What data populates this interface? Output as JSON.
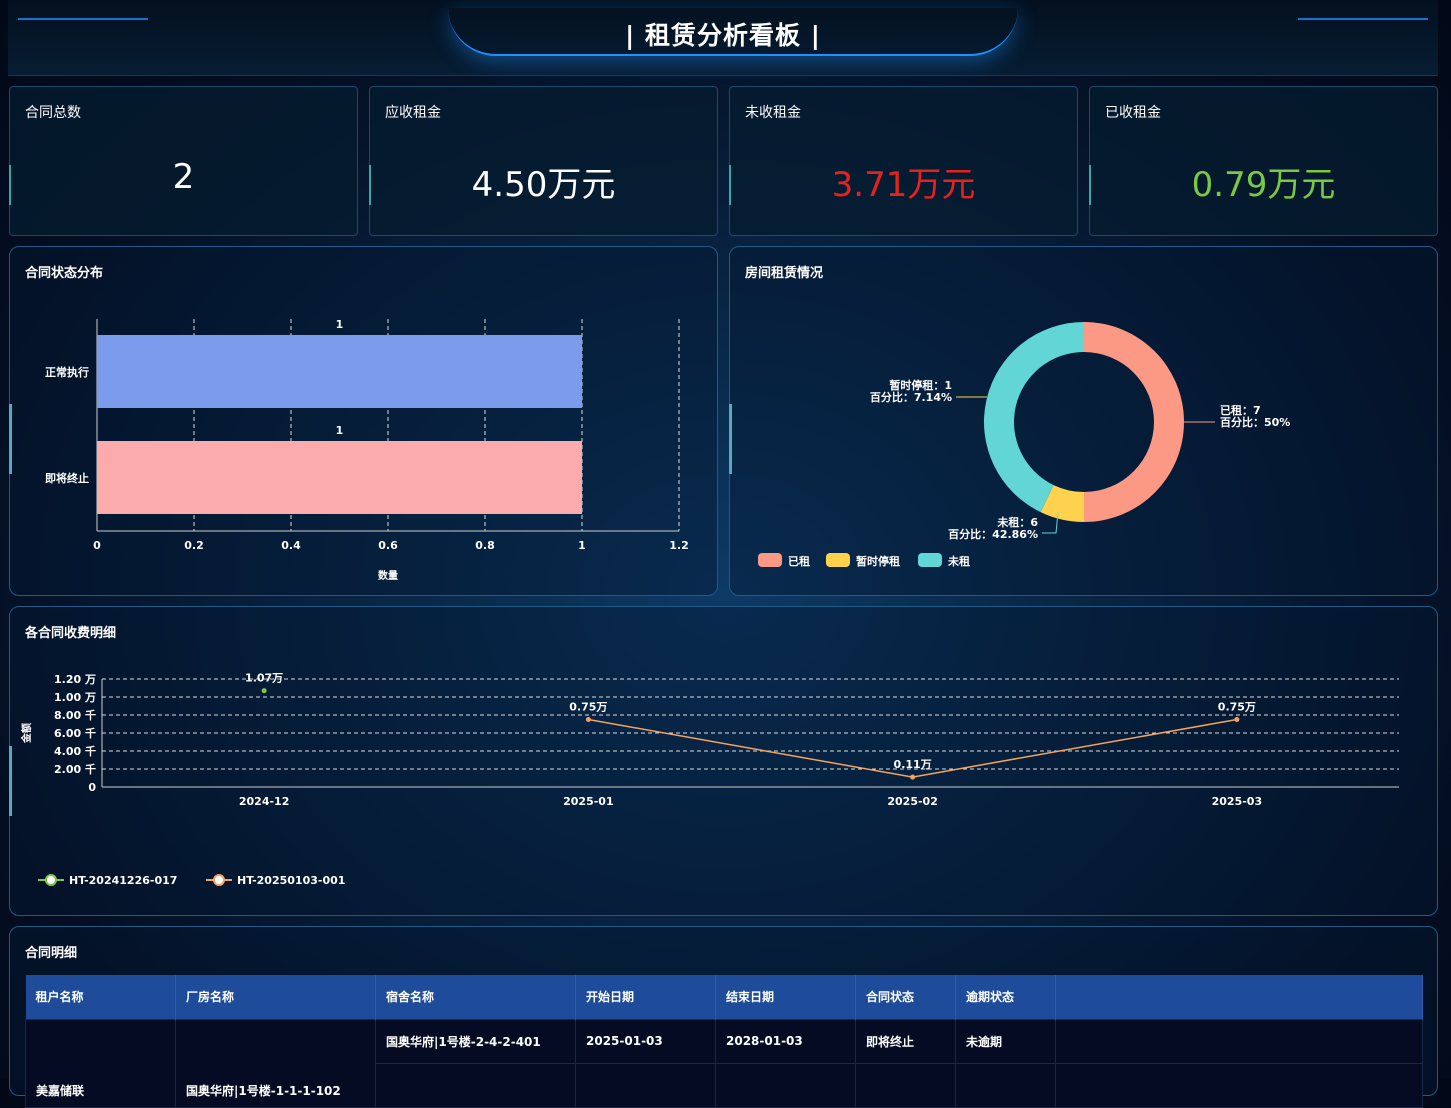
{
  "header": {
    "title": "| 租赁分析看板 |"
  },
  "stats": [
    {
      "label": "合同总数",
      "value": "2",
      "color": "#ffffff"
    },
    {
      "label": "应收租金",
      "value": "4.50万元",
      "color": "#ffffff"
    },
    {
      "label": "未收租金",
      "value": "3.71万元",
      "color": "#e8211f"
    },
    {
      "label": "已收租金",
      "value": "0.79万元",
      "color": "#7ac943"
    }
  ],
  "status_panel": {
    "title": "合同状态分布",
    "chart_data": {
      "type": "bar",
      "orientation": "horizontal",
      "categories": [
        "正常执行",
        "即将终止"
      ],
      "values": [
        1,
        1
      ],
      "colors": [
        "#7b9cec",
        "#fbabab"
      ],
      "xlabel": "数量",
      "xlim": [
        0,
        1.2
      ],
      "xticks": [
        "0",
        "0.2",
        "0.4",
        "0.6",
        "0.8",
        "1",
        "1.2"
      ],
      "data_labels": [
        "1",
        "1"
      ],
      "grid": true
    }
  },
  "room_panel": {
    "title": "房间租赁情况",
    "chart_data": {
      "type": "pie",
      "donut": true,
      "slices": [
        {
          "name": "已租",
          "value": 7,
          "percent": "50%",
          "color": "#fc9985",
          "label1": "已租：7",
          "label2": "百分比：50%"
        },
        {
          "name": "暂时停租",
          "value": 1,
          "percent": "7.14%",
          "color": "#ffd24d",
          "label1": "暂时停租：1",
          "label2": "百分比：7.14%"
        },
        {
          "name": "未租",
          "value": 6,
          "percent": "42.86%",
          "color": "#62d6d6",
          "label1": "未租：6",
          "label2": "百分比：42.86%"
        }
      ],
      "legend": "bottom-left"
    }
  },
  "fee_panel": {
    "title": "各合同收费明细",
    "chart_data": {
      "type": "line",
      "categories": [
        "2024-12",
        "2025-01",
        "2025-02",
        "2025-03"
      ],
      "ylim": [
        0,
        12000
      ],
      "yticks": [
        "0",
        "2.00 千",
        "4.00 千",
        "6.00 千",
        "8.00 千",
        "1.00 万",
        "1.20 万"
      ],
      "ylabel": "金额",
      "grid": true,
      "legend": "bottom-left",
      "series": [
        {
          "name": "HT-20241226-017",
          "color": "#7ac943",
          "values": [
            10700,
            null,
            null,
            null
          ],
          "labels": [
            "1.07万",
            null,
            null,
            null
          ]
        },
        {
          "name": "HT-20250103-001",
          "color": "#f4a460",
          "values": [
            null,
            7500,
            1100,
            7500
          ],
          "labels": [
            null,
            "0.75万",
            "0.11万",
            "0.75万"
          ]
        }
      ]
    }
  },
  "table_panel": {
    "title": "合同明细",
    "columns": [
      "租户名称",
      "厂房名称",
      "宿舍名称",
      "开始日期",
      "结束日期",
      "合同状态",
      "逾期状态",
      ""
    ],
    "rows": [
      {
        "tenant": "美嘉储联",
        "factory": "国奥华府|1号楼-1-1-1-102",
        "dorm": "国奥华府|1号楼-2-4-2-401",
        "start": "2025-01-03",
        "end": "2028-01-03",
        "status": "即将终止",
        "overdue": "未逾期"
      }
    ]
  }
}
